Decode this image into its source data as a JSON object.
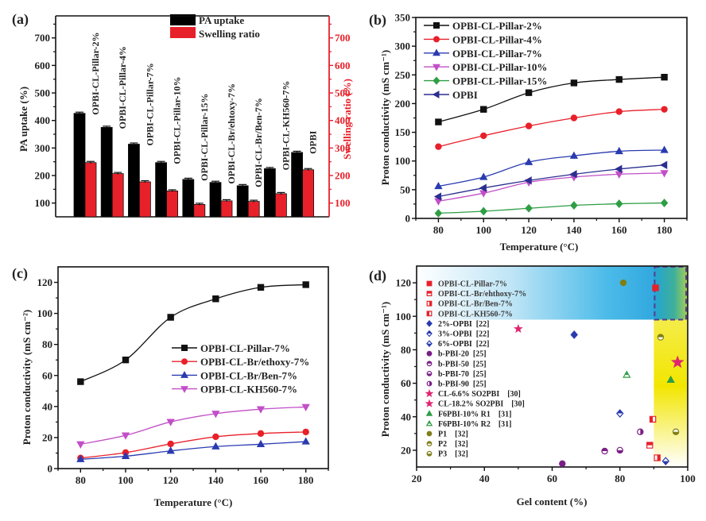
{
  "figure": {
    "panel_labels": [
      "(a)",
      "(b)",
      "(c)",
      "(d)"
    ]
  },
  "chart_data": [
    {
      "id": "a",
      "type": "bar",
      "title": "",
      "categories": [
        "OPBI-CL-Pillar-2%",
        "OPBI-CL-Pillar-4%",
        "OPBI-CL-Pillar-7%",
        "OPBI-CL-Pillar-10%",
        "OPBI-CL-Pillar-15%",
        "OPBI-CL-Br/ehtoxy-7%",
        "OPBI-CL-Br/Ben-7%",
        "OPBI-CL-KH560-7%",
        "OPBI"
      ],
      "series": [
        {
          "name": "PA uptake",
          "axis": "left",
          "color": "#000000",
          "values": [
            426,
            375,
            314,
            247,
            186,
            175,
            163,
            225,
            284
          ]
        },
        {
          "name": "Swelling ratio",
          "axis": "right",
          "color": "#e8202a",
          "values": [
            247,
            207,
            177,
            144,
            95,
            108,
            106,
            134,
            221
          ]
        }
      ],
      "ylabel": "PA uptake (%)",
      "y2label": "Swelling ratio (%)",
      "ylim": [
        50,
        780
      ],
      "y2lim": [
        50,
        780
      ],
      "yticks": [
        100,
        200,
        300,
        400,
        500,
        600,
        700
      ],
      "y2color": "#e8202a",
      "legend": "top-center",
      "error_bars": true
    },
    {
      "id": "b",
      "type": "line",
      "x": [
        80,
        100,
        120,
        140,
        160,
        180
      ],
      "series": [
        {
          "name": "OPBI-CL-Pillar-2%",
          "color": "#111111",
          "marker": "square",
          "values": [
            168,
            190,
            219,
            236,
            242,
            246
          ]
        },
        {
          "name": "OPBI-CL-Pillar-4%",
          "color": "#e8202a",
          "marker": "circle",
          "values": [
            125,
            144,
            161,
            175,
            186,
            190
          ]
        },
        {
          "name": "OPBI-CL-Pillar-7%",
          "color": "#2a3bb0",
          "marker": "triangle-up",
          "values": [
            56,
            72,
            98,
            109,
            117,
            119
          ]
        },
        {
          "name": "OPBI-CL-Pillar-10%",
          "color": "#c24fc7",
          "marker": "triangle-down",
          "values": [
            30,
            44,
            63,
            72,
            77,
            79
          ]
        },
        {
          "name": "OPBI-CL-Pillar-15%",
          "color": "#2e9e45",
          "marker": "diamond",
          "values": [
            9,
            12.5,
            17.6,
            22.7,
            25.5,
            26.9
          ]
        },
        {
          "name": "OPBI",
          "color": "#2b2f8f",
          "marker": "triangle-left",
          "values": [
            38,
            53,
            66,
            77,
            86,
            93
          ]
        }
      ],
      "xlabel": "Temperature (°C)",
      "ylabel": "Proton conductivity (mS cm⁻¹)",
      "xlim": [
        70,
        190
      ],
      "ylim": [
        0,
        350
      ],
      "xticks": [
        80,
        100,
        120,
        140,
        160,
        180
      ],
      "yticks": [
        0,
        50,
        100,
        150,
        200,
        250,
        300,
        350
      ],
      "legend": "top-left",
      "grid": false
    },
    {
      "id": "c",
      "type": "line",
      "x": [
        80,
        100,
        120,
        140,
        160,
        180
      ],
      "series": [
        {
          "name": "OPBI-CL-Pillar-7%",
          "color": "#111111",
          "marker": "square",
          "values": [
            56,
            70,
            97.5,
            109.4,
            116.8,
            118.5
          ]
        },
        {
          "name": "OPBI-CL-Br/ethoxy-7%",
          "color": "#e8202a",
          "marker": "circle",
          "values": [
            6.8,
            10.3,
            15.9,
            20.5,
            22.6,
            23.6
          ]
        },
        {
          "name": "OPBI-CL-Br/Ben-7%",
          "color": "#2a3bb0",
          "marker": "triangle-up",
          "values": [
            6,
            8,
            11.4,
            14.2,
            15.7,
            17.4
          ]
        },
        {
          "name": "OPBI-CL-KH560-7%",
          "color": "#c24fc7",
          "marker": "triangle-down",
          "values": [
            15.7,
            21.4,
            30.1,
            35.4,
            38.3,
            39.7
          ]
        }
      ],
      "xlabel": "Temperature (°C)",
      "ylabel": "Proton conductivity (mS cm⁻²)",
      "xlim": [
        70,
        190
      ],
      "ylim": [
        0,
        130
      ],
      "xticks": [
        80,
        100,
        120,
        140,
        160,
        180
      ],
      "yticks": [
        0,
        20,
        40,
        60,
        80,
        100,
        120
      ],
      "legend": "center-right",
      "grid": false
    },
    {
      "id": "d",
      "type": "scatter",
      "xlabel": "Gel content (%)",
      "ylabel": "Proton conductivity (mS cm⁻¹)",
      "xlim": [
        20,
        100
      ],
      "ylim": [
        10,
        130
      ],
      "xticks": [
        20,
        40,
        60,
        80,
        100
      ],
      "yticks": [
        20,
        40,
        60,
        80,
        100,
        120
      ],
      "legend": "top-left",
      "highlight_regions": [
        {
          "name": "high-conductivity band",
          "x": [
            20,
            100
          ],
          "y": [
            98,
            130
          ],
          "color": "#2aa6e0"
        },
        {
          "name": "high-gel band",
          "x": [
            90,
            100
          ],
          "y": [
            10,
            98
          ],
          "color": "#f2e600"
        },
        {
          "name": "target box",
          "x": [
            90,
            100
          ],
          "y": [
            98,
            130
          ],
          "style": "dashed",
          "color": "#5a3b8c"
        }
      ],
      "series": [
        {
          "name": "OPBI-CL-Pillar-7%",
          "color": "#e8202a",
          "marker": "square",
          "fill": "full",
          "points": [
            [
              90.5,
              117
            ]
          ]
        },
        {
          "name": "OPBI-CL-Br/ehthoxy-7%",
          "color": "#e8202a",
          "marker": "square",
          "fill": "top-half",
          "points": [
            [
              88.8,
              23
            ]
          ]
        },
        {
          "name": "OPBI-CL-Br/Ben-7%",
          "color": "#e8202a",
          "marker": "square",
          "fill": "right-half",
          "points": [
            [
              91,
              15.5
            ]
          ]
        },
        {
          "name": "OPBI-CL-KH560-7%",
          "color": "#e8202a",
          "marker": "square",
          "fill": "left-half",
          "points": [
            [
              89.7,
              38.5
            ]
          ]
        },
        {
          "name": "2%-OPBI  [22]",
          "color": "#2a3bb0",
          "marker": "diamond",
          "fill": "full",
          "points": [
            [
              66.5,
              89
            ]
          ]
        },
        {
          "name": "3%-OPBI  [22]",
          "color": "#2a3bb0",
          "marker": "diamond",
          "fill": "top-half",
          "points": [
            [
              80,
              42
            ]
          ]
        },
        {
          "name": "6%-OPBI  [22]",
          "color": "#2a3bb0",
          "marker": "diamond",
          "fill": "bottom-half",
          "points": [
            [
              93.5,
              13.5
            ]
          ]
        },
        {
          "name": "b-PBI-20  [25]",
          "color": "#7a1f86",
          "marker": "circle",
          "fill": "full",
          "points": [
            [
              63,
              12
            ]
          ]
        },
        {
          "name": "b-PBI-50  [25]",
          "color": "#7a1f86",
          "marker": "circle",
          "fill": "top-half",
          "points": [
            [
              75.5,
              19.5
            ]
          ]
        },
        {
          "name": "b-PBI-70  [25]",
          "color": "#7a1f86",
          "marker": "circle",
          "fill": "bottom-half",
          "points": [
            [
              80,
              20
            ]
          ]
        },
        {
          "name": "b-PBI-90  [25]",
          "color": "#7a1f86",
          "marker": "circle",
          "fill": "right-half",
          "points": [
            [
              86,
              31
            ]
          ]
        },
        {
          "name": "CL-6.6% SO2PBI    [30]",
          "color": "#e0246f",
          "marker": "star",
          "fill": "full",
          "size": "large",
          "points": [
            [
              97,
              72.5
            ]
          ]
        },
        {
          "name": "CL-18.2% SO2PBI    [30]",
          "color": "#e0246f",
          "marker": "star",
          "fill": "full",
          "size": "small",
          "points": [
            [
              50,
              92.5
            ]
          ]
        },
        {
          "name": "F6PBI-10% R1    [31]",
          "color": "#2e9e45",
          "marker": "triangle-up",
          "fill": "full",
          "points": [
            [
              95,
              62
            ]
          ]
        },
        {
          "name": "F6PBI-10% R2    [31]",
          "color": "#2e9e45",
          "marker": "triangle-up",
          "fill": "top-half",
          "points": [
            [
              82,
              65
            ]
          ]
        },
        {
          "name": "P1    [32]",
          "color": "#7f7f1a",
          "marker": "circle",
          "fill": "full",
          "points": [
            [
              81,
              120
            ]
          ]
        },
        {
          "name": "P2    [32]",
          "color": "#7f7f1a",
          "marker": "circle",
          "fill": "top-half",
          "points": [
            [
              92,
              87.5
            ]
          ]
        },
        {
          "name": "P3    [32]",
          "color": "#7f7f1a",
          "marker": "circle",
          "fill": "bottom-half",
          "points": [
            [
              96.5,
              31
            ]
          ]
        }
      ]
    }
  ]
}
